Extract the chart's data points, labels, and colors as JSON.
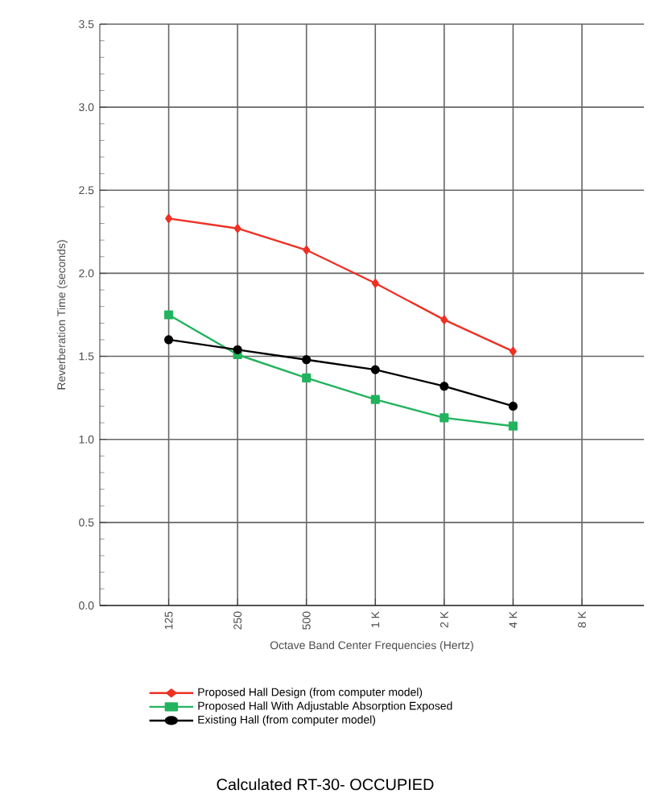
{
  "chart_data": {
    "type": "line",
    "title": "Calculated RT-30- OCCUPIED",
    "xlabel": "Octave Band Center Frequencies (Hertz)",
    "ylabel": "Reverberation Time (seconds)",
    "categories": [
      "125",
      "250",
      "500",
      "1 K",
      "2 K",
      "4 K",
      "8 K"
    ],
    "series": [
      {
        "name": "Proposed Hall Design (from computer model)",
        "color": "#ee3124",
        "marker": "diamond",
        "values": [
          2.33,
          2.27,
          2.14,
          1.94,
          1.72,
          1.53,
          null
        ]
      },
      {
        "name": "Proposed Hall With Adjustable Absorption Exposed",
        "color": "#22b35e",
        "marker": "square",
        "values": [
          1.75,
          1.51,
          1.37,
          1.24,
          1.13,
          1.08,
          null
        ]
      },
      {
        "name": "Existing Hall (from computer model)",
        "color": "#000000",
        "marker": "circle",
        "values": [
          1.6,
          1.54,
          1.48,
          1.42,
          1.32,
          1.2,
          null
        ]
      }
    ],
    "ylim": [
      0,
      3.5
    ],
    "yticks": [
      {
        "value": 0,
        "label": "0.0"
      },
      0.5,
      {
        "value": 1,
        "label": "1.0"
      },
      1.5,
      {
        "value": 2,
        "label": "2.0"
      },
      2.5,
      {
        "value": 3,
        "label": "3.0"
      },
      3.5
    ],
    "grid": true,
    "legend": "bottom",
    "line_style": "solid"
  }
}
